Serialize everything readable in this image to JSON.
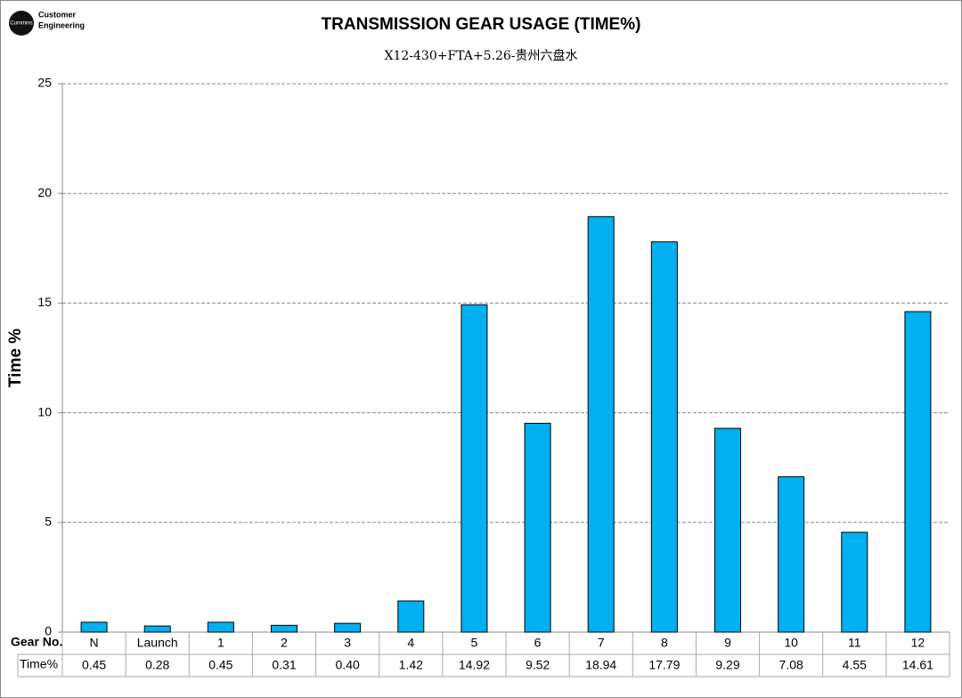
{
  "logo": {
    "brand": "Cummins",
    "lines": [
      "Customer",
      "Engineering"
    ]
  },
  "chart_data": {
    "type": "bar",
    "title": "TRANSMISSION GEAR USAGE (TIME%)",
    "subtitle": "X12-430+FTA+5.26-贵州六盘水",
    "y_label": "Time %",
    "table_row_labels": [
      "Gear No.",
      "Time%"
    ],
    "categories": [
      "N",
      "Launch",
      "1",
      "2",
      "3",
      "4",
      "5",
      "6",
      "7",
      "8",
      "9",
      "10",
      "11",
      "12"
    ],
    "values": [
      0.45,
      0.28,
      0.45,
      0.31,
      0.4,
      1.42,
      14.92,
      9.52,
      18.94,
      17.79,
      9.29,
      7.08,
      4.55,
      14.61
    ],
    "value_labels": [
      "0.45",
      "0.28",
      "0.45",
      "0.31",
      "0.40",
      "1.42",
      "14.92",
      "9.52",
      "18.94",
      "17.79",
      "9.29",
      "7.08",
      "4.55",
      "14.61"
    ],
    "color": "#00b0f0",
    "ylim": [
      0,
      25
    ],
    "yticks": [
      0,
      5,
      10,
      15,
      20,
      25
    ],
    "grid": true
  }
}
